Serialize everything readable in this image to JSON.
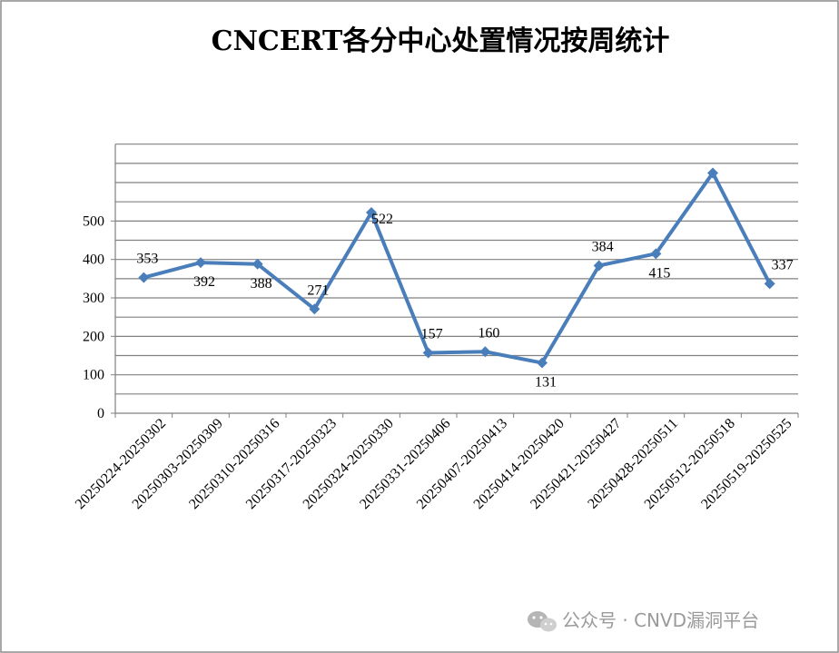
{
  "chart_data": {
    "type": "line",
    "title": "CNCERT各分中心处置情况按周统计",
    "xlabel": "",
    "ylabel": "",
    "ylim": [
      0,
      700
    ],
    "yticks": [
      0,
      100,
      200,
      300,
      400,
      500
    ],
    "grid": true,
    "legend": "none",
    "categories": [
      "20250224-20250302",
      "20250303-20250309",
      "20250310-20250316",
      "20250317-20250323",
      "20250324-20250330",
      "20250331-20250406",
      "20250407-20250413",
      "20250414-20250420",
      "20250421-20250427",
      "20250428-20250511",
      "20250512-20250518",
      "20250519-20250525"
    ],
    "series": [
      {
        "values": [
          353,
          392,
          388,
          271,
          522,
          157,
          160,
          131,
          384,
          415,
          625,
          337
        ],
        "data_labels": [
          "353",
          "392",
          "388",
          "271",
          "522",
          "157",
          "160",
          "131",
          "384",
          "415",
          "",
          "337"
        ],
        "color": "#4a7ebb"
      }
    ]
  },
  "watermark": {
    "text": "公众号 · CNVD漏洞平台",
    "icon": "wechat-icon"
  },
  "colors": {
    "line": "#4a7ebb",
    "grid": "#808080",
    "frame": "#8c8c8c"
  }
}
